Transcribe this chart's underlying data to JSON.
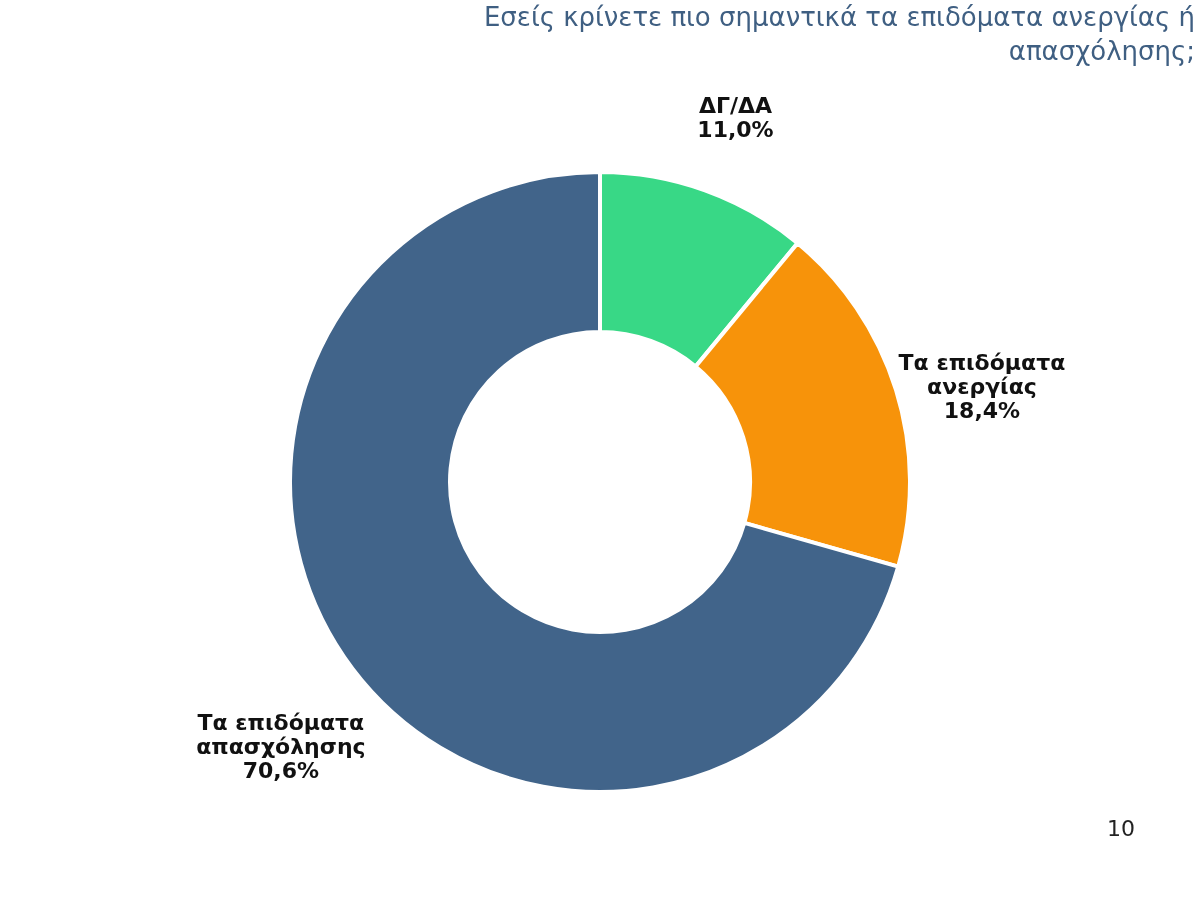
{
  "chart_data": {
    "type": "donut",
    "title": "Εσείς κρίνετε πιο σημαντικά τα επιδόματα ανεργίας ή απασχόλησης;",
    "categories": [
      "ΔΓ/ΔΑ",
      "Τα επιδόματα ανεργίας",
      "Τα επιδόματα απασχόλησης"
    ],
    "values": [
      11.0,
      18.4,
      70.6
    ],
    "value_labels": [
      "11,0%",
      "18,4%",
      "70,6%"
    ],
    "colors": [
      "#38d886",
      "#f7930a",
      "#41648a"
    ],
    "legend": false,
    "annotations": [
      "10"
    ]
  }
}
